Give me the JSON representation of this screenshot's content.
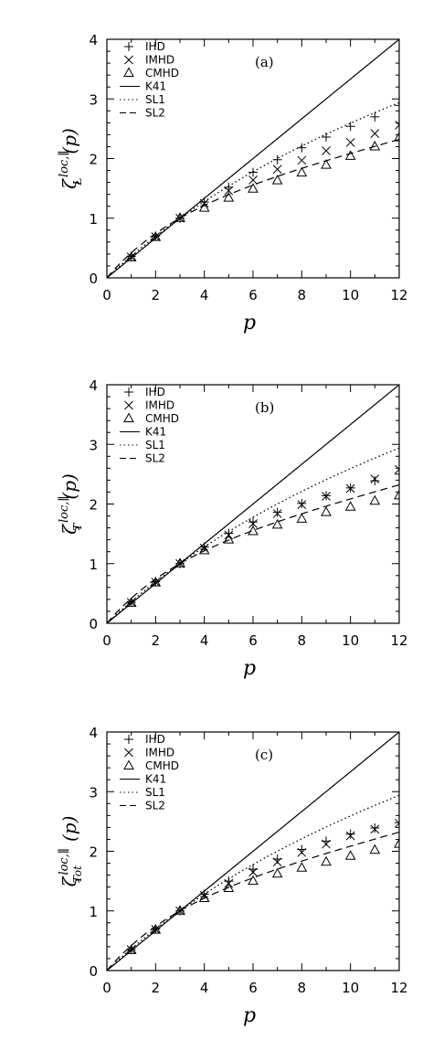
{
  "chart_data": [
    {
      "type": "line",
      "panel_label": "(a)",
      "ylabel_main": "ζ",
      "ylabel_sup": "loc,∥",
      "ylabel_sub": "L",
      "ylabel_arg": "(p)",
      "xlabel": "p",
      "xlim": [
        0,
        12
      ],
      "ylim": [
        0,
        4
      ],
      "xticks": [
        "0",
        "2",
        "4",
        "6",
        "8",
        "10",
        "12"
      ],
      "yticks": [
        "0",
        "1",
        "2",
        "3",
        "4"
      ],
      "legend": [
        {
          "name": "IHD",
          "kind": "plus"
        },
        {
          "name": "IMHD",
          "kind": "cross"
        },
        {
          "name": "CMHD",
          "kind": "triangle"
        },
        {
          "name": "K41",
          "kind": "solid"
        },
        {
          "name": "SL1",
          "kind": "dotted"
        },
        {
          "name": "SL2",
          "kind": "dashed"
        }
      ],
      "series": [
        {
          "name": "IHD",
          "x": [
            1,
            2,
            3,
            4,
            5,
            6,
            7,
            8,
            9,
            10,
            11,
            12
          ],
          "y": [
            0.36,
            0.7,
            1.0,
            1.27,
            1.52,
            1.77,
            1.98,
            2.18,
            2.36,
            2.54,
            2.7,
            2.89
          ]
        },
        {
          "name": "IMHD",
          "x": [
            1,
            2,
            3,
            4,
            5,
            6,
            7,
            8,
            9,
            10,
            11,
            12
          ],
          "y": [
            0.35,
            0.69,
            1.0,
            1.25,
            1.46,
            1.64,
            1.82,
            1.97,
            2.13,
            2.27,
            2.42,
            2.56
          ]
        },
        {
          "name": "CMHD",
          "x": [
            1,
            2,
            3,
            4,
            5,
            6,
            7,
            8,
            9,
            10,
            11,
            12
          ],
          "y": [
            0.34,
            0.68,
            1.0,
            1.17,
            1.34,
            1.49,
            1.63,
            1.76,
            1.89,
            2.04,
            2.2,
            2.35
          ]
        }
      ],
      "curves": [
        "K41",
        "SL1",
        "SL2"
      ]
    },
    {
      "type": "line",
      "panel_label": "(b)",
      "ylabel_main": "ζ",
      "ylabel_sup": "loc,∥",
      "ylabel_sub": "T",
      "ylabel_arg": "(p)",
      "xlabel": "p",
      "xlim": [
        0,
        12
      ],
      "ylim": [
        0,
        4
      ],
      "xticks": [
        "0",
        "2",
        "4",
        "6",
        "8",
        "10",
        "12"
      ],
      "yticks": [
        "0",
        "1",
        "2",
        "3",
        "4"
      ],
      "legend": [
        {
          "name": "IHD",
          "kind": "plus"
        },
        {
          "name": "IMHD",
          "kind": "cross"
        },
        {
          "name": "CMHD",
          "kind": "triangle"
        },
        {
          "name": "K41",
          "kind": "solid"
        },
        {
          "name": "SL1",
          "kind": "dotted"
        },
        {
          "name": "SL2",
          "kind": "dashed"
        }
      ],
      "series": [
        {
          "name": "IHD",
          "x": [
            1,
            2,
            3,
            4,
            5,
            6,
            7,
            8,
            9,
            10,
            11,
            12
          ],
          "y": [
            0.35,
            0.7,
            1.0,
            1.28,
            1.51,
            1.7,
            1.86,
            2.01,
            2.14,
            2.27,
            2.39,
            2.5
          ]
        },
        {
          "name": "IMHD",
          "x": [
            1,
            2,
            3,
            4,
            5,
            6,
            7,
            8,
            9,
            10,
            11,
            12
          ],
          "y": [
            0.35,
            0.69,
            1.0,
            1.26,
            1.48,
            1.67,
            1.84,
            1.99,
            2.13,
            2.26,
            2.42,
            2.58
          ]
        },
        {
          "name": "CMHD",
          "x": [
            1,
            2,
            3,
            4,
            5,
            6,
            7,
            8,
            9,
            10,
            11,
            12
          ],
          "y": [
            0.34,
            0.68,
            1.0,
            1.22,
            1.4,
            1.54,
            1.65,
            1.75,
            1.86,
            1.95,
            2.05,
            2.14
          ]
        }
      ],
      "curves": [
        "K41",
        "SL1",
        "SL2"
      ]
    },
    {
      "type": "line",
      "panel_label": "(c)",
      "ylabel_main": "ζ",
      "ylabel_sup": "loc,∥",
      "ylabel_sub": "Tot",
      "ylabel_arg": "(p)",
      "xlabel": "p",
      "xlim": [
        0,
        12
      ],
      "ylim": [
        0,
        4
      ],
      "xticks": [
        "0",
        "2",
        "4",
        "6",
        "8",
        "10",
        "12"
      ],
      "yticks": [
        "0",
        "1",
        "2",
        "3",
        "4"
      ],
      "legend": [
        {
          "name": "IHD",
          "kind": "plus"
        },
        {
          "name": "IMHD",
          "kind": "cross"
        },
        {
          "name": "CMHD",
          "kind": "triangle"
        },
        {
          "name": "K41",
          "kind": "solid"
        },
        {
          "name": "SL1",
          "kind": "dotted"
        },
        {
          "name": "SL2",
          "kind": "dashed"
        }
      ],
      "series": [
        {
          "name": "IHD",
          "x": [
            1,
            2,
            3,
            4,
            5,
            6,
            7,
            8,
            9,
            10,
            11,
            12
          ],
          "y": [
            0.35,
            0.7,
            1.0,
            1.28,
            1.5,
            1.7,
            1.87,
            2.03,
            2.17,
            2.29,
            2.39,
            2.48
          ]
        },
        {
          "name": "IMHD",
          "x": [
            1,
            2,
            3,
            4,
            5,
            6,
            7,
            8,
            9,
            10,
            11,
            12
          ],
          "y": [
            0.35,
            0.69,
            1.0,
            1.26,
            1.46,
            1.65,
            1.82,
            1.98,
            2.12,
            2.26,
            2.37,
            2.47
          ]
        },
        {
          "name": "CMHD",
          "x": [
            1,
            2,
            3,
            4,
            5,
            6,
            7,
            8,
            9,
            10,
            11,
            12
          ],
          "y": [
            0.34,
            0.68,
            1.0,
            1.21,
            1.38,
            1.5,
            1.62,
            1.72,
            1.82,
            1.92,
            2.02,
            2.12
          ]
        }
      ],
      "curves": [
        "K41",
        "SL1",
        "SL2"
      ]
    }
  ]
}
